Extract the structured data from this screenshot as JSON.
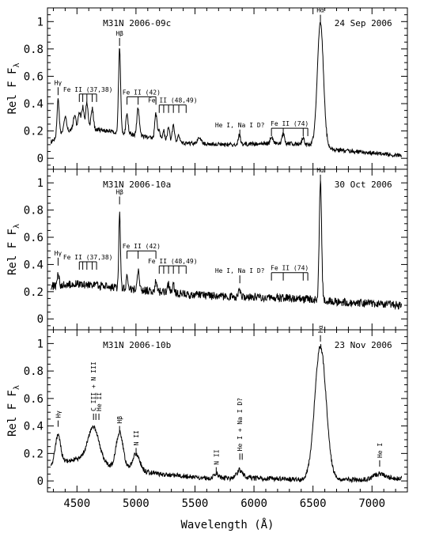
{
  "chart_data": {
    "type": "line",
    "xlabel": "Wavelength (Å)",
    "ylabel": "Rel F",
    "ylabel_sub": "λ",
    "xlim": [
      4250,
      7300
    ],
    "x_ticks": [
      4500,
      5000,
      5500,
      6000,
      6500,
      7000
    ],
    "x_tick_labels": [
      "4500",
      "5000",
      "5500",
      "6000",
      "6500",
      "7000"
    ],
    "panels": [
      {
        "name": "M31N 2006-09c",
        "date": "24 Sep 2006",
        "ylim": [
          -0.08,
          1.1
        ],
        "y_ticks": [
          0,
          0.2,
          0.4,
          0.6,
          0.8,
          1
        ],
        "y_tick_labels": [
          "0",
          "0.2",
          "0.4",
          "0.6",
          "0.8",
          "1"
        ],
        "continuum": [
          [
            4280,
            0.12
          ],
          [
            4400,
            0.2
          ],
          [
            4600,
            0.22
          ],
          [
            5000,
            0.17
          ],
          [
            5400,
            0.11
          ],
          [
            5800,
            0.1
          ],
          [
            6200,
            0.11
          ],
          [
            6500,
            0.1
          ],
          [
            6700,
            0.06
          ],
          [
            7000,
            0.04
          ],
          [
            7250,
            0.02
          ]
        ],
        "features": [
          {
            "c": 4340,
            "a": 0.27,
            "w": 9
          },
          {
            "c": 4400,
            "a": 0.1,
            "w": 12
          },
          {
            "c": 4480,
            "a": 0.1,
            "w": 12
          },
          {
            "c": 4520,
            "a": 0.12,
            "w": 10
          },
          {
            "c": 4549,
            "a": 0.16,
            "w": 10
          },
          {
            "c": 4584,
            "a": 0.19,
            "w": 10
          },
          {
            "c": 4629,
            "a": 0.15,
            "w": 10
          },
          {
            "c": 4861,
            "a": 0.62,
            "w": 9
          },
          {
            "c": 4924,
            "a": 0.15,
            "w": 9
          },
          {
            "c": 5018,
            "a": 0.2,
            "w": 10
          },
          {
            "c": 5169,
            "a": 0.18,
            "w": 10
          },
          {
            "c": 5197,
            "a": 0.07,
            "w": 8
          },
          {
            "c": 5235,
            "a": 0.07,
            "w": 8
          },
          {
            "c": 5276,
            "a": 0.1,
            "w": 9
          },
          {
            "c": 5317,
            "a": 0.12,
            "w": 9
          },
          {
            "c": 5363,
            "a": 0.05,
            "w": 8
          },
          {
            "c": 5535,
            "a": 0.04,
            "w": 15
          },
          {
            "c": 5876,
            "a": 0.08,
            "w": 8
          },
          {
            "c": 6148,
            "a": 0.05,
            "w": 10
          },
          {
            "c": 6248,
            "a": 0.07,
            "w": 10
          },
          {
            "c": 6417,
            "a": 0.05,
            "w": 10
          },
          {
            "c": 6563,
            "a": 0.9,
            "w": 26
          }
        ],
        "noise_amp": 0.015,
        "ids": [
          {
            "label": "Hγ",
            "x": 4340,
            "y": 0.52,
            "kind": "single"
          },
          {
            "label": "Fe II (37,38)",
            "lines": [
              4520,
              4549,
              4584,
              4629,
              4666
            ],
            "y": 0.47,
            "kind": "comb"
          },
          {
            "label": "Hβ",
            "x": 4861,
            "y": 0.88,
            "kind": "single"
          },
          {
            "label": "Fe II (42)",
            "lines": [
              4924,
              5018,
              5169
            ],
            "y": 0.45,
            "kind": "comb"
          },
          {
            "label": "Fe II (48,49)",
            "lines": [
              5197,
              5235,
              5276,
              5317,
              5363,
              5425
            ],
            "y": 0.39,
            "kind": "comb"
          },
          {
            "label": "He I, Na I D?",
            "x": 5880,
            "y": 0.21,
            "kind": "single"
          },
          {
            "label": "Fe II (74)",
            "lines": [
              6148,
              6248,
              6417,
              6456
            ],
            "y": 0.22,
            "kind": "comb"
          },
          {
            "label": "Hα",
            "x": 6563,
            "y": 1.05,
            "kind": "single"
          }
        ]
      },
      {
        "name": "M31N 2006-10a",
        "date": "30 Oct 2006",
        "ylim": [
          -0.08,
          1.1
        ],
        "y_ticks": [
          0,
          0.2,
          0.4,
          0.6,
          0.8,
          1
        ],
        "y_tick_labels": [
          "0",
          "0.2",
          "0.4",
          "0.6",
          "0.8",
          "1"
        ],
        "continuum": [
          [
            4280,
            0.24
          ],
          [
            4500,
            0.26
          ],
          [
            4800,
            0.23
          ],
          [
            5200,
            0.2
          ],
          [
            5600,
            0.17
          ],
          [
            6000,
            0.16
          ],
          [
            6400,
            0.15
          ],
          [
            6800,
            0.12
          ],
          [
            7250,
            0.1
          ]
        ],
        "features": [
          {
            "c": 4340,
            "a": 0.1,
            "w": 8
          },
          {
            "c": 4861,
            "a": 0.56,
            "w": 7
          },
          {
            "c": 4924,
            "a": 0.1,
            "w": 7
          },
          {
            "c": 5018,
            "a": 0.14,
            "w": 8
          },
          {
            "c": 5169,
            "a": 0.08,
            "w": 8
          },
          {
            "c": 5276,
            "a": 0.06,
            "w": 8
          },
          {
            "c": 5317,
            "a": 0.06,
            "w": 8
          },
          {
            "c": 5876,
            "a": 0.05,
            "w": 7
          },
          {
            "c": 6563,
            "a": 0.88,
            "w": 10
          }
        ],
        "noise_amp": 0.03,
        "ids": [
          {
            "label": "Hγ",
            "x": 4340,
            "y": 0.45,
            "kind": "single"
          },
          {
            "label": "Fe II (37,38)",
            "lines": [
              4520,
              4549,
              4584,
              4629,
              4666
            ],
            "y": 0.42,
            "kind": "comb"
          },
          {
            "label": "Hβ",
            "x": 4861,
            "y": 0.9,
            "kind": "single"
          },
          {
            "label": "Fe II (42)",
            "lines": [
              4924,
              5018,
              5169
            ],
            "y": 0.5,
            "kind": "comb"
          },
          {
            "label": "Fe II (48,49)",
            "lines": [
              5197,
              5235,
              5276,
              5317,
              5363,
              5425
            ],
            "y": 0.39,
            "kind": "comb"
          },
          {
            "label": "He I, Na I D?",
            "x": 5880,
            "y": 0.32,
            "kind": "single"
          },
          {
            "label": "Fe II (74)",
            "lines": [
              6148,
              6248,
              6417,
              6456
            ],
            "y": 0.34,
            "kind": "comb"
          },
          {
            "label": "Hα",
            "x": 6563,
            "y": 1.06,
            "kind": "single"
          }
        ]
      },
      {
        "name": "M31N 2006-10b",
        "date": "23 Nov 2006",
        "ylim": [
          -0.08,
          1.1
        ],
        "y_ticks": [
          0,
          0.2,
          0.4,
          0.6,
          0.8,
          1
        ],
        "y_tick_labels": [
          "0",
          "0.2",
          "0.4",
          "0.6",
          "0.8",
          "1"
        ],
        "continuum": [
          [
            4280,
            0.12
          ],
          [
            4500,
            0.16
          ],
          [
            4800,
            0.1
          ],
          [
            5200,
            0.05
          ],
          [
            5600,
            0.02
          ],
          [
            6000,
            0.02
          ],
          [
            6400,
            0.01
          ],
          [
            7000,
            0.01
          ],
          [
            7250,
            0.02
          ]
        ],
        "features": [
          {
            "c": 4340,
            "a": 0.2,
            "w": 22
          },
          {
            "c": 4640,
            "a": 0.26,
            "w": 48
          },
          {
            "c": 4861,
            "a": 0.26,
            "w": 30
          },
          {
            "c": 5001,
            "a": 0.12,
            "w": 32
          },
          {
            "c": 5680,
            "a": 0.03,
            "w": 20
          },
          {
            "c": 5880,
            "a": 0.06,
            "w": 25
          },
          {
            "c": 6563,
            "a": 0.97,
            "w": 48
          },
          {
            "c": 7065,
            "a": 0.04,
            "w": 50
          }
        ],
        "noise_amp": 0.018,
        "ids": [
          {
            "label": "Hγ",
            "x": 4340,
            "y": 0.44,
            "kind": "rot"
          },
          {
            "label": "C III + N III",
            "x": 4640,
            "y": 0.49,
            "kind": "rot2"
          },
          {
            "label": "He II",
            "x": 4686,
            "y": 0.49,
            "kind": "rot"
          },
          {
            "label": "Hβ",
            "x": 4861,
            "y": 0.4,
            "kind": "rot"
          },
          {
            "label": "N II",
            "x": 5001,
            "y": 0.24,
            "kind": "rot"
          },
          {
            "label": "N II",
            "x": 5680,
            "y": 0.1,
            "kind": "rot"
          },
          {
            "label": "He I + Na I D?",
            "x": 5880,
            "y": 0.2,
            "kind": "rot2"
          },
          {
            "label": "Hα",
            "x": 6563,
            "y": 1.06,
            "kind": "rot"
          },
          {
            "label": "He I",
            "x": 7065,
            "y": 0.15,
            "kind": "rot"
          }
        ]
      }
    ]
  }
}
